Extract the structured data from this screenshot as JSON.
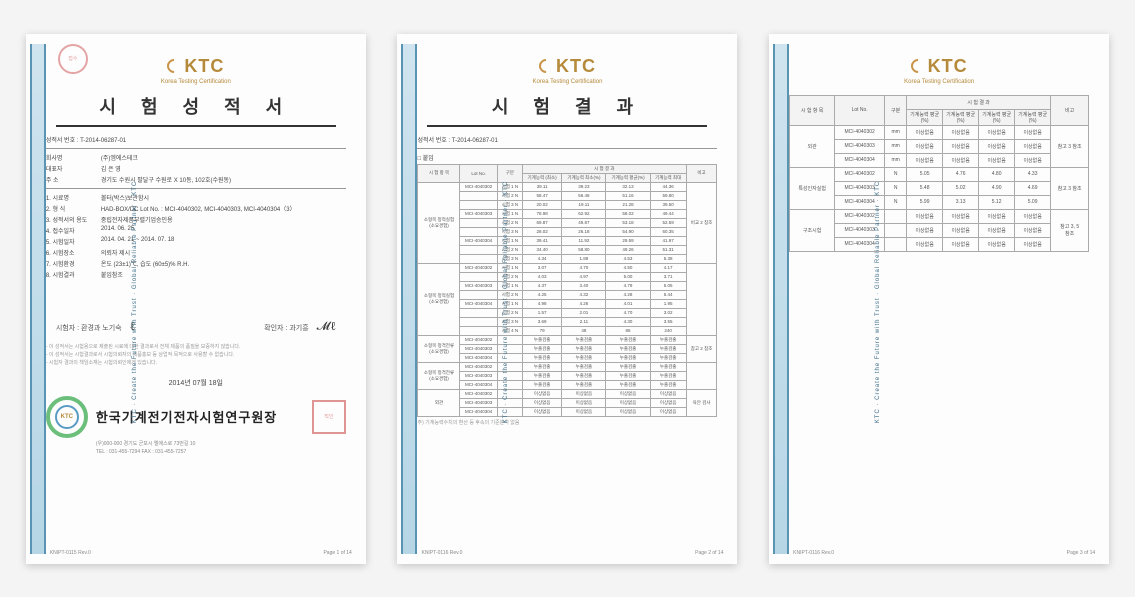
{
  "colors": {
    "brand": "#b58a3a",
    "strip_a": "#cfe4ef",
    "strip_b": "#b6d6e6",
    "strip_border": "#5a94b3",
    "stamp_red": "#d46a6a",
    "seal_green": "#6bbf7b",
    "seal_blue": "#5a9bc4"
  },
  "side_strip_text": "KTC · Create the Future with Trust · Global Reliable Partner · KTC",
  "logo_text": "KTC",
  "logo_subtitle": "Korea Testing Certification",
  "page1": {
    "title": "시 험 성 적 서",
    "ref": "성적서 번호 : T-2014-06287-01",
    "info": [
      {
        "label": "회사명",
        "value": "(주)엠에스테크"
      },
      {
        "label": "대표자",
        "value": "김 은 영"
      },
      {
        "label": "주 소",
        "value": "경기도 수원시 팔달구 수원로 X 10동, 102호(수원동)"
      }
    ],
    "divider_rows": [
      {
        "label": "1. 시료명",
        "value": "볼터(박스)보관함시"
      },
      {
        "label": "2. 형 식",
        "value": "HAD-BOX/DC   Lot No. : MCI-4040302, MCI-4040303, MCI-4040304（3）"
      },
      {
        "label": "3. 성적서의 용도",
        "value": "중립전자제품부렬기업승인용"
      },
      {
        "label": "4. 접수일자",
        "value": "2014. 06. 25"
      },
      {
        "label": "5. 시험일자",
        "value": "2014. 04. 21 ~ 2014. 07. 18"
      },
      {
        "label": "6. 시험장소",
        "value": "의뢰자 제시"
      },
      {
        "label": "7. 시험환경",
        "value": "온도 (23±1)℃, 습도 (60±5)% R.H."
      },
      {
        "label": "8. 시험결과",
        "value": "붙임참조"
      }
    ],
    "tester_label": "시험자 :",
    "tester_name": "환경과  노기숙",
    "confirm_label": "확인자 :",
    "confirm_name": "과기흥",
    "fine_print": [
      "- 이 성적서는 시험용으로 제출된 시료에 대한 결과로서 전체 제품의 품질을 보증하지 않습니다.",
      "- 이 성적서는 시험결과로서 시험의뢰자의 제품홍보 등 상업적 목적으로 사용할 수 없습니다.",
      "- 시험자 결과의 책임소재는 시험의뢰인에게 있습니다."
    ],
    "issue_date": "2014년  07월  18일",
    "org_name": "한국기계전기전자시험연구원장",
    "org_addr_1": "(우)000-000  경기도 군포시 엘에스로 73번길 10",
    "org_addr_2": "TEL : 031-455-7294  FAX : 031-455-7257",
    "footer_left": "KNIPT-0115  Rev.0",
    "footer_right": "Page  1 of 14"
  },
  "page2": {
    "title": "시 험 결 과",
    "ref": "성적서 번호 : T-2014-06287-01",
    "section": "□ 붙임",
    "headers": {
      "c1": "시 험 항 목",
      "c2": "Lot No.",
      "c3": "구분",
      "grp": "시 험 결 과",
      "g1": "기계능력\n(최소)",
      "g2": "기계능력\n최소(%)",
      "g3": "기계능력\n평균(%)",
      "g4": "기계능력\n최대",
      "c_last": "비고"
    },
    "group1": {
      "label": "소형목 정적실험\n(소요경험)",
      "note": "비교 2 참조",
      "rows": [
        {
          "lot": "MCI-4040302",
          "sub": "시험 1",
          "u": "N",
          "a": "39.11",
          "b": "39.23",
          "c": "32.13",
          "d": "44.36"
        },
        {
          "lot": "",
          "sub": "시험 2",
          "u": "N",
          "a": "58.47",
          "b": "56.48",
          "c": "51.16",
          "d": "59.80"
        },
        {
          "lot": "",
          "sub": "시험 3",
          "u": "N",
          "a": "20.02",
          "b": "19.11",
          "c": "21.28",
          "d": "39.50"
        },
        {
          "lot": "MCI-4040303",
          "sub": "시험 1",
          "u": "N",
          "a": "78.98",
          "b": "62.92",
          "c": "58.02",
          "d": "49.44"
        },
        {
          "lot": "",
          "sub": "시험 2",
          "u": "N",
          "a": "69.87",
          "b": "49.87",
          "c": "53.18",
          "d": "52.59"
        },
        {
          "lot": "",
          "sub": "시험 3",
          "u": "N",
          "a": "28.02",
          "b": "26.18",
          "c": "54.90",
          "d": "60.35"
        },
        {
          "lot": "MCI-4040304",
          "sub": "시험 1",
          "u": "N",
          "a": "39.41",
          "b": "11.92",
          "c": "29.59",
          "d": "41.97"
        },
        {
          "lot": "",
          "sub": "시험 2",
          "u": "N",
          "a": "34.40",
          "b": "58.80",
          "c": "49.26",
          "d": "51.31"
        },
        {
          "lot": "",
          "sub": "시험 3",
          "u": "N",
          "a": "4.34",
          "b": "1.88",
          "c": "4.53",
          "d": "5.38"
        }
      ]
    },
    "group2": {
      "label": "소형목 정적실험\n(소요경험)",
      "rows": [
        {
          "lot": "MCI-4040302",
          "sub": "시험 1",
          "u": "N",
          "a": "3.07",
          "b": "4.70",
          "c": "4.50",
          "d": "4.17"
        },
        {
          "lot": "",
          "sub": "시험 2",
          "u": "N",
          "a": "4.03",
          "b": "4.97",
          "c": "5.00",
          "d": "3.71"
        },
        {
          "lot": "MCI-4040303",
          "sub": "시험 1",
          "u": "N",
          "a": "4.37",
          "b": "3.40",
          "c": "4.79",
          "d": "5.05"
        },
        {
          "lot": "",
          "sub": "시험 2",
          "u": "N",
          "a": "4.25",
          "b": "4.32",
          "c": "4.28",
          "d": "5.44"
        },
        {
          "lot": "MCI-4040304",
          "sub": "시험 1",
          "u": "N",
          "a": "4.98",
          "b": "4.26",
          "c": "4.01",
          "d": "1.95"
        },
        {
          "lot": "",
          "sub": "시험 2",
          "u": "N",
          "a": "1.57",
          "b": "2.01",
          "c": "4.70",
          "d": "3.02"
        },
        {
          "lot": "",
          "sub": "시험 3",
          "u": "N",
          "a": "3.69",
          "b": "2.11",
          "c": "4.30",
          "d": "3.55"
        },
        {
          "lot": "",
          "sub": "시험 4",
          "u": "N",
          "a": "79",
          "b": "48",
          "c": "86",
          "d": "240"
        }
      ]
    },
    "group3": {
      "label": "소형목 정격전류\n(소요경험)",
      "note": "참고 2 참조",
      "rows": [
        {
          "lot": "MCI-4040302",
          "a": "누출검출",
          "b": "누출검출",
          "c": "누출검출",
          "d": "누출검출"
        },
        {
          "lot": "MCI-4040303",
          "a": "누출검출",
          "b": "누출검출",
          "c": "누출검출",
          "d": "누출검출"
        },
        {
          "lot": "MCI-4040304",
          "a": "누출검출",
          "b": "누출검출",
          "c": "누출검출",
          "d": "누출검출"
        }
      ]
    },
    "group4": {
      "label": "소형목 정격전류\n(소요경험)",
      "rows": [
        {
          "lot": "MCI-4040302",
          "a": "누출검출",
          "b": "누출검출",
          "c": "누출검출",
          "d": "누출검출"
        },
        {
          "lot": "MCI-4040303",
          "a": "누출검출",
          "b": "누출검출",
          "c": "누출검출",
          "d": "누출검출"
        },
        {
          "lot": "MCI-4040304",
          "a": "누출검출",
          "b": "누출검출",
          "c": "누출검출",
          "d": "누출검출"
        }
      ]
    },
    "group5": {
      "label": "외관",
      "note": "육안 검사",
      "rows": [
        {
          "lot": "MCI-4040302",
          "a": "이상없음",
          "b": "이상없음",
          "c": "이상없음",
          "d": "이상없음"
        },
        {
          "lot": "MCI-4040303",
          "a": "이상없음",
          "b": "이상없음",
          "c": "이상없음",
          "d": "이상없음"
        },
        {
          "lot": "MCI-4040304",
          "a": "이상없음",
          "b": "이상없음",
          "c": "이상없음",
          "d": "이상없음"
        }
      ]
    },
    "table_footnote": "주) 기계능력수치의 환산 등 후속의 기준분석 없음",
    "footer_left": "KNIPT-0116  Rev.0",
    "footer_right": "Page  2 of 14"
  },
  "page3": {
    "headers": {
      "c1": "시 험 항 목",
      "c2": "Lot No.",
      "c3": "구분",
      "grp": "시 험 결 과",
      "g1": "기계능력\n평균(%)",
      "g2": "기계능력\n평균(%)",
      "g3": "기계능력\n평균(%)",
      "g4": "기계능력\n평균(%)",
      "c_last": "비고"
    },
    "blocks": [
      {
        "label": "외관",
        "note": "참고 3 참조",
        "rows": [
          {
            "lot": "MCI-4040302",
            "u": "mm",
            "a": "이상없음",
            "b": "이상없음",
            "c": "이상없음",
            "d": "이상없음"
          },
          {
            "lot": "MCI-4040303",
            "u": "mm",
            "a": "이상없음",
            "b": "이상없음",
            "c": "이상없음",
            "d": "이상없음"
          },
          {
            "lot": "MCI-4040304",
            "u": "mm",
            "a": "이상없음",
            "b": "이상없음",
            "c": "이상없음",
            "d": "이상없음"
          }
        ]
      },
      {
        "label": "특성인자실험",
        "note": "참고 3 참조",
        "rows": [
          {
            "lot": "MCI-4040302",
            "u": "N",
            "a": "5.05",
            "b": "4.76",
            "c": "4.80",
            "d": "4.33"
          },
          {
            "lot": "MCI-4040303",
            "u": "N",
            "a": "5.48",
            "b": "5.02",
            "c": "4.90",
            "d": "4.69"
          },
          {
            "lot": "MCI-4040304",
            "u": "N",
            "a": "5.99",
            "b": "3.13",
            "c": "5.12",
            "d": "5.09"
          }
        ]
      },
      {
        "label": "구조시험",
        "note": "참고 3, 5\n참조",
        "rows": [
          {
            "lot": "MCI-4040302",
            "u": "",
            "a": "이상없음",
            "b": "이상없음",
            "c": "이상없음",
            "d": "이상없음"
          },
          {
            "lot": "MCI-4040303",
            "u": "",
            "a": "이상없음",
            "b": "이상없음",
            "c": "이상없음",
            "d": "이상없음"
          },
          {
            "lot": "MCI-4040304",
            "u": "",
            "a": "이상없음",
            "b": "이상없음",
            "c": "이상없음",
            "d": "이상없음"
          }
        ]
      }
    ],
    "footer_left": "KNIPT-0116  Rev.0",
    "footer_right": "Page  3 of 14"
  }
}
